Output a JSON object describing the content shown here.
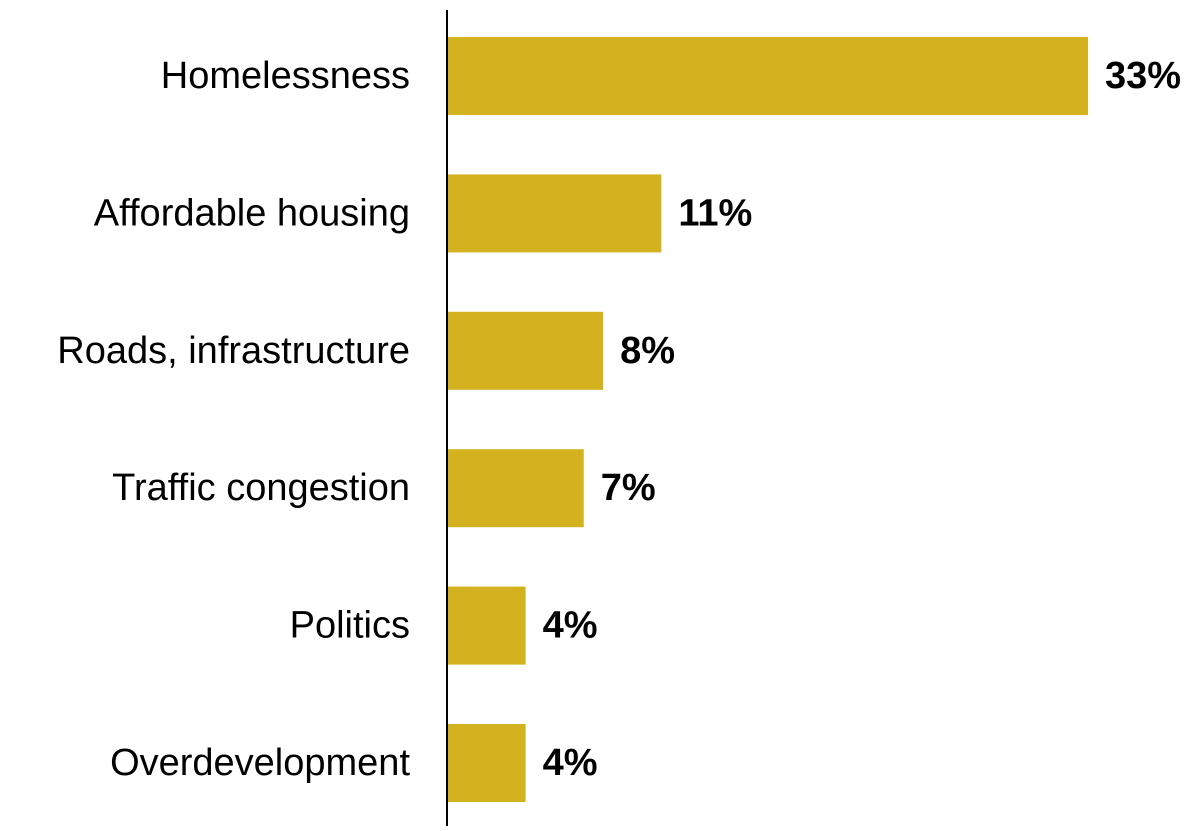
{
  "chart_data": {
    "type": "bar",
    "orientation": "horizontal",
    "categories": [
      "Homelessness",
      "Affordable housing",
      "Roads, infrastructure",
      "Traffic congestion",
      "Politics",
      "Overdevelopment"
    ],
    "values": [
      33,
      11,
      8,
      7,
      4,
      4
    ],
    "value_labels": [
      "33%",
      "11%",
      "8%",
      "7%",
      "4%",
      "4%"
    ],
    "unit": "%",
    "title": "",
    "xlabel": "",
    "ylabel": "",
    "xlim": [
      0,
      33
    ],
    "grid": false,
    "legend": "none",
    "bar_color": "#D4B21F",
    "axis_color": "#000000"
  }
}
